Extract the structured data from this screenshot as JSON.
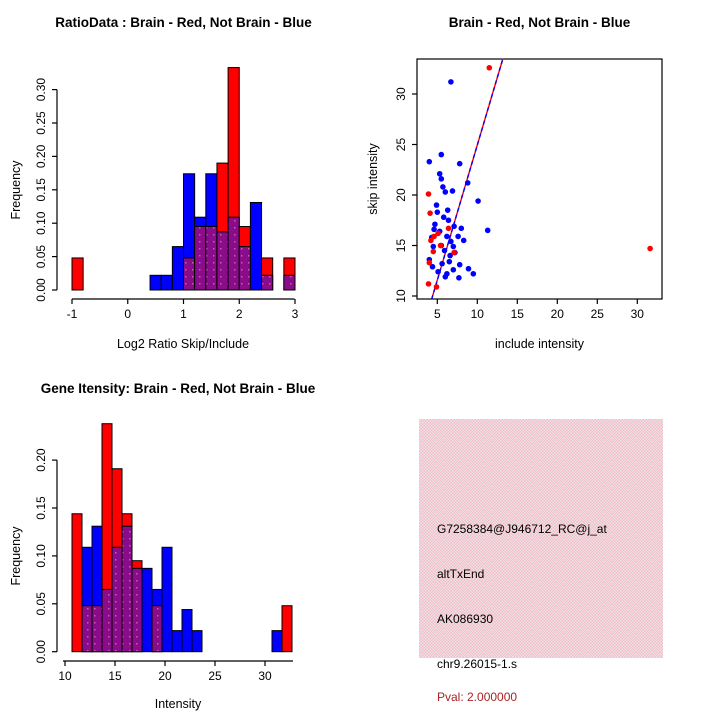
{
  "colors": {
    "red": "#ff0000",
    "blue": "#0000ff",
    "overlap_purple": "#8b0c8b",
    "overlap_dot": "#c25fa5",
    "axis": "#000000",
    "info_panel_pink": "#f2c4cc",
    "pval_text": "#aa2222",
    "background": "#ffffff"
  },
  "chart_data": [
    {
      "id": "ratio_hist",
      "type": "bar",
      "subtype": "overlaid-histogram",
      "title": "RatioData : Brain - Red, Not Brain - Blue",
      "xlabel": "Log2 Ratio Skip/Include",
      "ylabel": "Frequency",
      "xlim": [
        -1.2,
        3.2
      ],
      "ylim": [
        0,
        0.333
      ],
      "grid": false,
      "bin_width": 0.2,
      "xticks": {
        "values": [
          -1,
          0,
          1,
          2,
          3
        ],
        "labels": [
          "-1",
          "0",
          "1",
          "2",
          "3"
        ]
      },
      "yticks": {
        "values": [
          0,
          0.05,
          0.1,
          0.15,
          0.2,
          0.25,
          0.3
        ],
        "labels": [
          "0.00",
          "0.05",
          "0.10",
          "0.15",
          "0.20",
          "0.25",
          "0.30"
        ]
      },
      "legend": {
        "red_series": "Brain",
        "blue_series": "Not Brain"
      },
      "bins": [
        {
          "start": -1.0,
          "red": 0.048,
          "blue": 0
        },
        {
          "start": 0.4,
          "red": 0,
          "blue": 0.022
        },
        {
          "start": 0.6,
          "red": 0,
          "blue": 0.022
        },
        {
          "start": 0.8,
          "red": 0,
          "blue": 0.065
        },
        {
          "start": 1.0,
          "red": 0.048,
          "blue": 0.174
        },
        {
          "start": 1.2,
          "red": 0.095,
          "blue": 0.109
        },
        {
          "start": 1.4,
          "red": 0.095,
          "blue": 0.174
        },
        {
          "start": 1.6,
          "red": 0.19,
          "blue": 0.087
        },
        {
          "start": 1.8,
          "red": 0.333,
          "blue": 0.109
        },
        {
          "start": 2.0,
          "red": 0.095,
          "blue": 0.065
        },
        {
          "start": 2.2,
          "red": 0,
          "blue": 0.131
        },
        {
          "start": 2.4,
          "red": 0.048,
          "blue": 0.022
        },
        {
          "start": 2.8,
          "red": 0.048,
          "blue": 0.022
        }
      ]
    },
    {
      "id": "scatter",
      "type": "scatter",
      "title": "Brain - Red, Not Brain - Blue",
      "xlabel": "include intensity",
      "ylabel": "skip intensity",
      "xlim": [
        2.5,
        33
      ],
      "ylim": [
        9.7,
        33.4
      ],
      "grid": false,
      "xticks": {
        "values": [
          5,
          10,
          15,
          20,
          25,
          30
        ],
        "labels": [
          "5",
          "10",
          "15",
          "20",
          "25",
          "30"
        ]
      },
      "yticks": {
        "values": [
          10,
          15,
          20,
          25,
          30
        ],
        "labels": [
          "10",
          "15",
          "20",
          "25",
          "30"
        ]
      },
      "fit_line": {
        "x1": 4.3,
        "y1": 9.7,
        "x2": 13.2,
        "y2": 33.5,
        "colors": [
          "red",
          "blue"
        ]
      },
      "series": [
        {
          "name": "Brain",
          "color": "red",
          "points": [
            [
              11.5,
              32.6
            ],
            [
              31.6,
              14.7
            ],
            [
              3.9,
              20.1
            ],
            [
              4.1,
              18.2
            ],
            [
              6.4,
              16.7
            ],
            [
              5.1,
              16.2
            ],
            [
              4.6,
              15.9
            ],
            [
              4.2,
              15.5
            ],
            [
              5.4,
              15.0
            ],
            [
              4.5,
              14.4
            ],
            [
              7.1,
              14.3
            ],
            [
              4.0,
              13.3
            ],
            [
              3.9,
              11.2
            ],
            [
              4.9,
              10.9
            ]
          ]
        },
        {
          "name": "Not Brain",
          "color": "blue",
          "points": [
            [
              6.7,
              31.2
            ],
            [
              4.0,
              23.3
            ],
            [
              5.5,
              24.0
            ],
            [
              7.8,
              23.1
            ],
            [
              5.3,
              22.1
            ],
            [
              5.5,
              21.6
            ],
            [
              6.0,
              20.3
            ],
            [
              6.9,
              20.4
            ],
            [
              8.8,
              21.2
            ],
            [
              4.9,
              19.0
            ],
            [
              6.3,
              18.5
            ],
            [
              10.1,
              19.4
            ],
            [
              4.7,
              17.1
            ],
            [
              6.4,
              17.5
            ],
            [
              7.1,
              16.9
            ],
            [
              8.0,
              16.7
            ],
            [
              11.3,
              16.5
            ],
            [
              4.3,
              15.8
            ],
            [
              6.2,
              15.9
            ],
            [
              7.6,
              15.9
            ],
            [
              5.5,
              15.0
            ],
            [
              7.0,
              14.9
            ],
            [
              8.3,
              15.5
            ],
            [
              4.5,
              14.9
            ],
            [
              7.2,
              14.3
            ],
            [
              4.0,
              13.6
            ],
            [
              5.6,
              13.2
            ],
            [
              6.5,
              13.4
            ],
            [
              7.8,
              13.1
            ],
            [
              5.1,
              12.4
            ],
            [
              6.2,
              12.2
            ],
            [
              7.0,
              12.6
            ],
            [
              8.9,
              12.7
            ],
            [
              9.5,
              12.2
            ],
            [
              7.7,
              11.8
            ],
            [
              5.0,
              18.3
            ],
            [
              5.8,
              17.8
            ],
            [
              6.7,
              15.4
            ],
            [
              5.3,
              16.4
            ],
            [
              4.6,
              16.6
            ],
            [
              6.0,
              11.9
            ],
            [
              5.9,
              14.5
            ],
            [
              6.6,
              14.0
            ],
            [
              4.4,
              12.9
            ],
            [
              5.7,
              20.8
            ]
          ]
        }
      ]
    },
    {
      "id": "gene_hist",
      "type": "bar",
      "subtype": "overlaid-histogram",
      "title": "Gene Itensity: Brain - Red, Not Brain - Blue",
      "xlabel": "Intensity",
      "ylabel": "Frequency",
      "xlim": [
        10,
        33
      ],
      "ylim": [
        0,
        0.238
      ],
      "grid": false,
      "bin_width": 1,
      "xticks": {
        "values": [
          10,
          15,
          20,
          25,
          30
        ],
        "labels": [
          "10",
          "15",
          "20",
          "25",
          "30"
        ]
      },
      "yticks": {
        "values": [
          0,
          0.05,
          0.1,
          0.15,
          0.2
        ],
        "labels": [
          "0.00",
          "0.05",
          "0.10",
          "0.15",
          "0.20"
        ]
      },
      "legend": {
        "red_series": "Brain",
        "blue_series": "Not Brain"
      },
      "bins": [
        {
          "start": 10.7,
          "red": 0.144,
          "blue": 0
        },
        {
          "start": 11.7,
          "red": 0.048,
          "blue": 0.109
        },
        {
          "start": 12.7,
          "red": 0.048,
          "blue": 0.131
        },
        {
          "start": 13.7,
          "red": 0.238,
          "blue": 0.065
        },
        {
          "start": 14.7,
          "red": 0.191,
          "blue": 0.109
        },
        {
          "start": 15.7,
          "red": 0.144,
          "blue": 0.131
        },
        {
          "start": 16.7,
          "red": 0.095,
          "blue": 0.087
        },
        {
          "start": 17.7,
          "red": 0,
          "blue": 0.087
        },
        {
          "start": 18.7,
          "red": 0.048,
          "blue": 0.065
        },
        {
          "start": 19.7,
          "red": 0,
          "blue": 0.109
        },
        {
          "start": 20.7,
          "red": 0,
          "blue": 0.022
        },
        {
          "start": 21.7,
          "red": 0,
          "blue": 0.044
        },
        {
          "start": 22.7,
          "red": 0,
          "blue": 0.022
        },
        {
          "start": 30.7,
          "red": 0,
          "blue": 0.022
        },
        {
          "start": 31.7,
          "red": 0.048,
          "blue": 0
        }
      ]
    }
  ],
  "info_panel": {
    "lines": [
      {
        "text": "G7258384@J946712_RC@j_at",
        "color": "#000000"
      },
      {
        "text": "altTxEnd",
        "color": "#000000"
      },
      {
        "text": "AK086930",
        "color": "#000000"
      },
      {
        "text": "chr9.26015-1.s",
        "color": "#000000"
      },
      {
        "text": "Pval: 2.000000",
        "color": "#aa2222"
      }
    ]
  }
}
